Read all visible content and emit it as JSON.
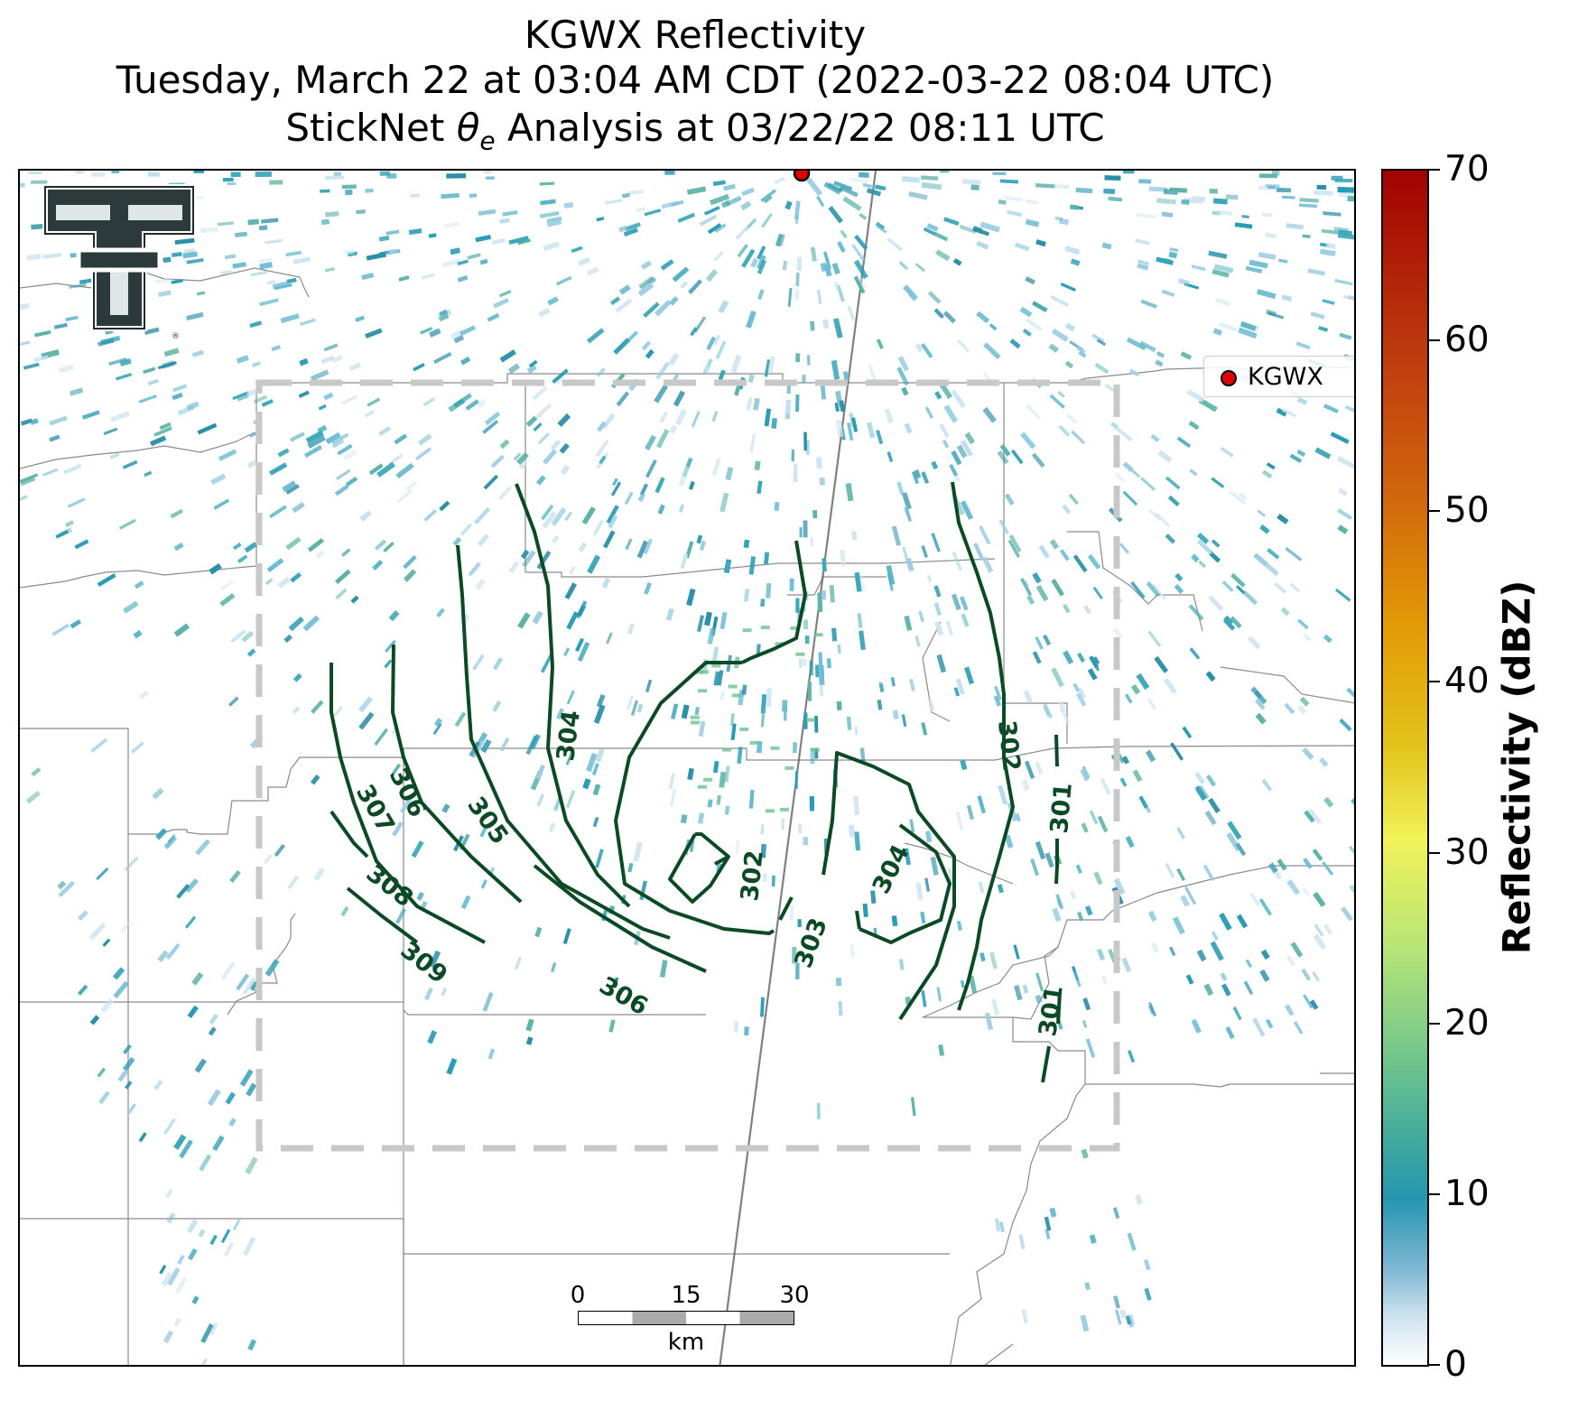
{
  "header": {
    "line1": "KGWX Reflectivity",
    "line2": "Tuesday, March 22 at 03:04 AM CDT (2022-03-22 08:04 UTC)",
    "line3_prefix": "StickNet ",
    "line3_symbol": "θ",
    "line3_sub": "e",
    "line3_suffix": " Analysis at 03/22/22 08:11 UTC"
  },
  "legend": {
    "label": "KGWX",
    "marker_color": "#e00000"
  },
  "colorbar": {
    "label": "Reflectivity (dBZ)",
    "ticks": [
      "70",
      "60",
      "50",
      "40",
      "30",
      "20",
      "10",
      "0"
    ],
    "range_dbz": [
      0,
      70
    ]
  },
  "scalebar": {
    "labels": [
      "0",
      "15",
      "30"
    ],
    "unit": "km"
  },
  "contours": {
    "color": "#0b4a24",
    "labels": [
      "309",
      "308",
      "307",
      "306",
      "305",
      "304",
      "303",
      "302",
      "302",
      "301",
      "301",
      "306",
      "304"
    ]
  },
  "colors": {
    "contour": "#0b4a24",
    "radar": "#2a9bb5",
    "site_marker": "#e00000",
    "analysis_box": "#c8c8c8"
  }
}
